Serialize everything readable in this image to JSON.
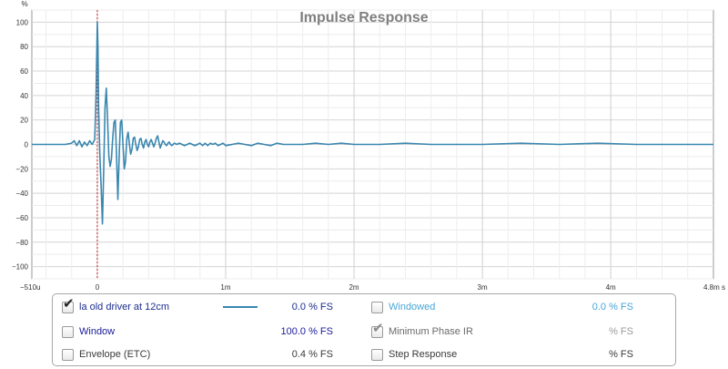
{
  "chart_data": {
    "type": "line",
    "title": "Impulse Response",
    "y_unit_label": "%",
    "ylim": [
      -110,
      110
    ],
    "y_ticks": [
      100,
      80,
      60,
      40,
      20,
      0,
      -20,
      -40,
      -60,
      -80,
      -100
    ],
    "y_tick_labels": [
      "100",
      "80",
      "60",
      "40",
      "20",
      "0",
      "−20",
      "−40",
      "−60",
      "−80",
      "−100"
    ],
    "xlim_ms": [
      -0.51,
      4.8
    ],
    "x_ticks_ms": [
      -0.51,
      0,
      1,
      2,
      3,
      4,
      4.8
    ],
    "x_tick_labels": [
      "−510u",
      "0",
      "1m",
      "2m",
      "3m",
      "4m",
      "4.8m s"
    ],
    "grid": true,
    "marker_x_ms": 0,
    "series": [
      {
        "name": "la old driver at 12cm",
        "color": "#3a87b0",
        "x_ms": [
          -0.51,
          -0.25,
          -0.2,
          -0.18,
          -0.16,
          -0.14,
          -0.12,
          -0.1,
          -0.08,
          -0.06,
          -0.04,
          -0.02,
          -0.01,
          0.0,
          0.005,
          0.01,
          0.02,
          0.03,
          0.04,
          0.05,
          0.06,
          0.07,
          0.08,
          0.09,
          0.1,
          0.11,
          0.12,
          0.13,
          0.14,
          0.15,
          0.16,
          0.17,
          0.18,
          0.19,
          0.2,
          0.21,
          0.22,
          0.23,
          0.24,
          0.25,
          0.26,
          0.27,
          0.28,
          0.29,
          0.3,
          0.31,
          0.32,
          0.33,
          0.34,
          0.35,
          0.36,
          0.37,
          0.38,
          0.39,
          0.4,
          0.41,
          0.42,
          0.43,
          0.44,
          0.45,
          0.46,
          0.47,
          0.48,
          0.49,
          0.5,
          0.51,
          0.52,
          0.53,
          0.54,
          0.55,
          0.56,
          0.57,
          0.58,
          0.59,
          0.6,
          0.62,
          0.64,
          0.66,
          0.68,
          0.7,
          0.72,
          0.74,
          0.76,
          0.78,
          0.8,
          0.82,
          0.84,
          0.86,
          0.88,
          0.9,
          0.92,
          0.94,
          0.96,
          0.98,
          1.0,
          1.05,
          1.1,
          1.15,
          1.2,
          1.25,
          1.3,
          1.35,
          1.4,
          1.45,
          1.5,
          1.6,
          1.7,
          1.8,
          1.9,
          2.0,
          2.2,
          2.4,
          2.6,
          2.8,
          3.0,
          3.3,
          3.6,
          3.9,
          4.2,
          4.5,
          4.8
        ],
        "y_pct": [
          0,
          0,
          1,
          3,
          -1,
          3,
          -2,
          2,
          -1,
          3,
          0,
          4,
          40,
          100,
          80,
          30,
          -10,
          -35,
          -65,
          -20,
          30,
          46,
          20,
          -10,
          -18,
          -12,
          5,
          18,
          20,
          -10,
          -45,
          -10,
          18,
          20,
          0,
          -20,
          -14,
          5,
          10,
          0,
          -8,
          -4,
          5,
          6,
          0,
          -5,
          -2,
          4,
          5,
          0,
          -3,
          2,
          4,
          0,
          -2,
          2,
          4,
          1,
          -2,
          1,
          5,
          7,
          2,
          -3,
          0,
          3,
          2,
          0,
          -1,
          1,
          2,
          0,
          -1,
          0,
          1,
          0,
          1,
          0,
          -1,
          0,
          1,
          0,
          -1,
          0,
          1,
          -1,
          1,
          -1,
          1,
          0,
          1,
          -1,
          0,
          1,
          -1,
          0,
          1,
          0,
          -1,
          1,
          0,
          -1,
          1,
          0,
          0,
          0,
          1,
          0,
          1,
          0,
          0,
          1,
          0,
          0,
          0,
          1,
          0,
          1,
          0,
          0,
          0
        ]
      }
    ]
  },
  "legend": {
    "rows": [
      {
        "label": "la old driver at 12cm",
        "checked": true,
        "value": "0.0 % FS",
        "label_color": "#1b2f8f",
        "value_color": "#1b2f8f",
        "swatch_color": "#3a87b0"
      },
      {
        "label": "Window",
        "checked": false,
        "value": "100.0 % FS",
        "label_color": "#1a1a9a",
        "value_color": "#1a1a9a"
      },
      {
        "label": "Envelope (ETC)",
        "checked": false,
        "value": "0.4 % FS",
        "label_color": "#3a3a3a",
        "value_color": "#3a3a3a"
      },
      {
        "label": "Windowed",
        "checked": false,
        "value": "0.0 % FS",
        "label_color": "#4aa6d6",
        "value_color": "#4aa6d6"
      },
      {
        "label": "Minimum Phase IR",
        "checked": true,
        "value": "% FS",
        "label_color": "#6a6a6a",
        "value_color": "#9a9a9a"
      },
      {
        "label": "Step Response",
        "checked": false,
        "value": "% FS",
        "label_color": "#3a3a3a",
        "value_color": "#3a3a3a"
      }
    ]
  }
}
